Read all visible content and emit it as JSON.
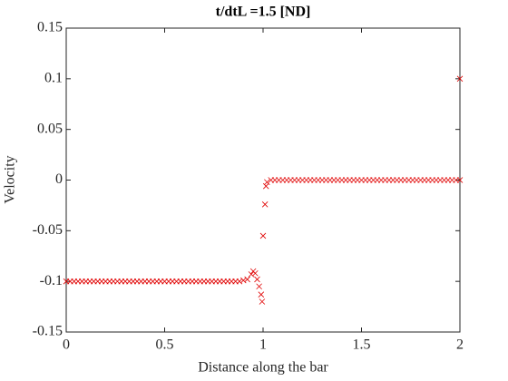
{
  "chart_data": {
    "type": "scatter",
    "title": "t/dtL =1.5 [ND]",
    "x_label": "Distance along the bar",
    "y_label": "Velocity",
    "xlim": [
      0,
      2
    ],
    "ylim": [
      -0.15,
      0.15
    ],
    "xticks": [
      0,
      0.5,
      1,
      1.5,
      2
    ],
    "yticks": [
      -0.15,
      -0.1,
      -0.05,
      0,
      0.05,
      0.1,
      0.15
    ],
    "marker": "x",
    "color": "#e00000",
    "x": [
      0,
      0.02,
      0.04,
      0.06,
      0.08,
      0.1,
      0.12,
      0.14,
      0.16,
      0.18,
      0.2,
      0.22,
      0.24,
      0.26,
      0.28,
      0.3,
      0.32,
      0.34,
      0.36,
      0.38,
      0.4,
      0.42,
      0.44,
      0.46,
      0.48,
      0.5,
      0.52,
      0.54,
      0.56,
      0.58,
      0.6,
      0.62,
      0.64,
      0.66,
      0.68,
      0.7,
      0.72,
      0.74,
      0.76,
      0.78,
      0.8,
      0.82,
      0.84,
      0.86,
      0.88,
      0.9,
      0.92,
      0.94,
      0.95,
      0.96,
      0.97,
      0.98,
      0.99,
      0.995,
      1.0,
      1.01,
      1.015,
      1.02,
      1.04,
      1.06,
      1.08,
      1.1,
      1.12,
      1.14,
      1.16,
      1.18,
      1.2,
      1.22,
      1.24,
      1.26,
      1.28,
      1.3,
      1.32,
      1.34,
      1.36,
      1.38,
      1.4,
      1.42,
      1.44,
      1.46,
      1.48,
      1.5,
      1.52,
      1.54,
      1.56,
      1.58,
      1.6,
      1.62,
      1.64,
      1.66,
      1.68,
      1.7,
      1.72,
      1.74,
      1.76,
      1.78,
      1.8,
      1.82,
      1.84,
      1.86,
      1.88,
      1.9,
      1.92,
      1.94,
      1.96,
      1.98,
      2,
      2
    ],
    "values": [
      -0.1,
      -0.1,
      -0.1,
      -0.1,
      -0.1,
      -0.1,
      -0.1,
      -0.1,
      -0.1,
      -0.1,
      -0.1,
      -0.1,
      -0.1,
      -0.1,
      -0.1,
      -0.1,
      -0.1,
      -0.1,
      -0.1,
      -0.1,
      -0.1,
      -0.1,
      -0.1,
      -0.1,
      -0.1,
      -0.1,
      -0.1,
      -0.1,
      -0.1,
      -0.1,
      -0.1,
      -0.1,
      -0.1,
      -0.1,
      -0.1,
      -0.1,
      -0.1,
      -0.1,
      -0.1,
      -0.1,
      -0.1,
      -0.1,
      -0.1,
      -0.1,
      -0.1,
      -0.099,
      -0.098,
      -0.093,
      -0.09,
      -0.092,
      -0.098,
      -0.105,
      -0.113,
      -0.12,
      -0.055,
      -0.024,
      -0.006,
      -0.002,
      0,
      0,
      0,
      0,
      0,
      0,
      0,
      0,
      0,
      0,
      0,
      0,
      0,
      0,
      0,
      0,
      0,
      0,
      0,
      0,
      0,
      0,
      0,
      0,
      0,
      0,
      0,
      0,
      0,
      0,
      0,
      0,
      0,
      0,
      0,
      0,
      0,
      0,
      0,
      0,
      0,
      0,
      0,
      0,
      0,
      0,
      0,
      0,
      0,
      0.1
    ]
  }
}
